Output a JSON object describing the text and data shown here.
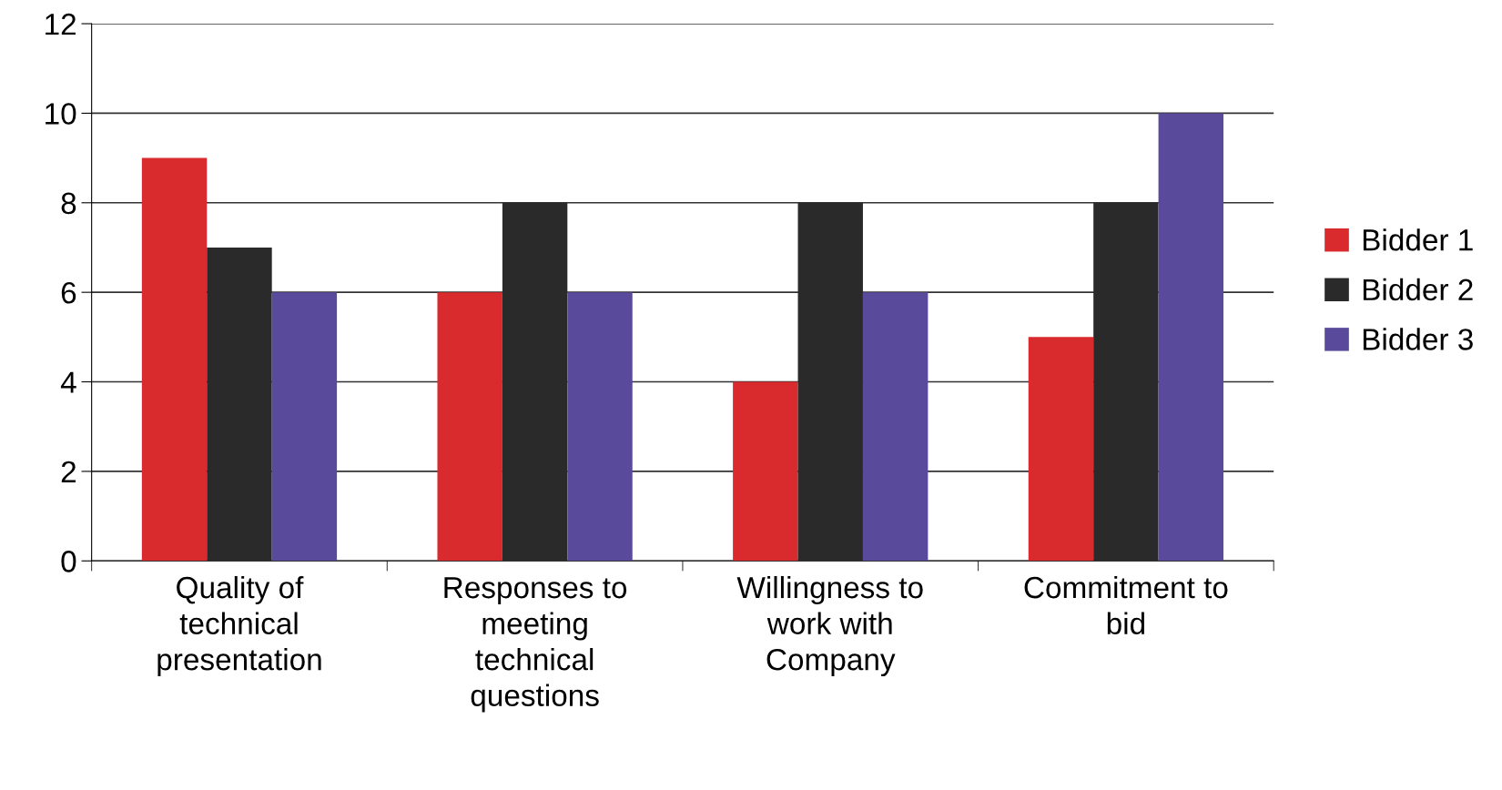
{
  "chart_data": {
    "type": "bar",
    "categories": [
      "Quality of\ntechnical\npresentation",
      "Responses to\nmeeting\ntechnical\nquestions",
      "Willingness to\nwork with\nCompany",
      "Commitment to\nbid"
    ],
    "series": [
      {
        "name": "Bidder 1",
        "color": "#d92a2e",
        "values": [
          9,
          6,
          4,
          5
        ]
      },
      {
        "name": "Bidder 2",
        "color": "#2a2a2a",
        "values": [
          7,
          8,
          8,
          8
        ]
      },
      {
        "name": "Bidder 3",
        "color": "#5a4a9c",
        "values": [
          6,
          6,
          6,
          10
        ]
      }
    ],
    "ylim": [
      0,
      12
    ],
    "yticks": [
      0,
      2,
      4,
      6,
      8,
      10,
      12
    ],
    "grid": "y",
    "legend": "right"
  }
}
